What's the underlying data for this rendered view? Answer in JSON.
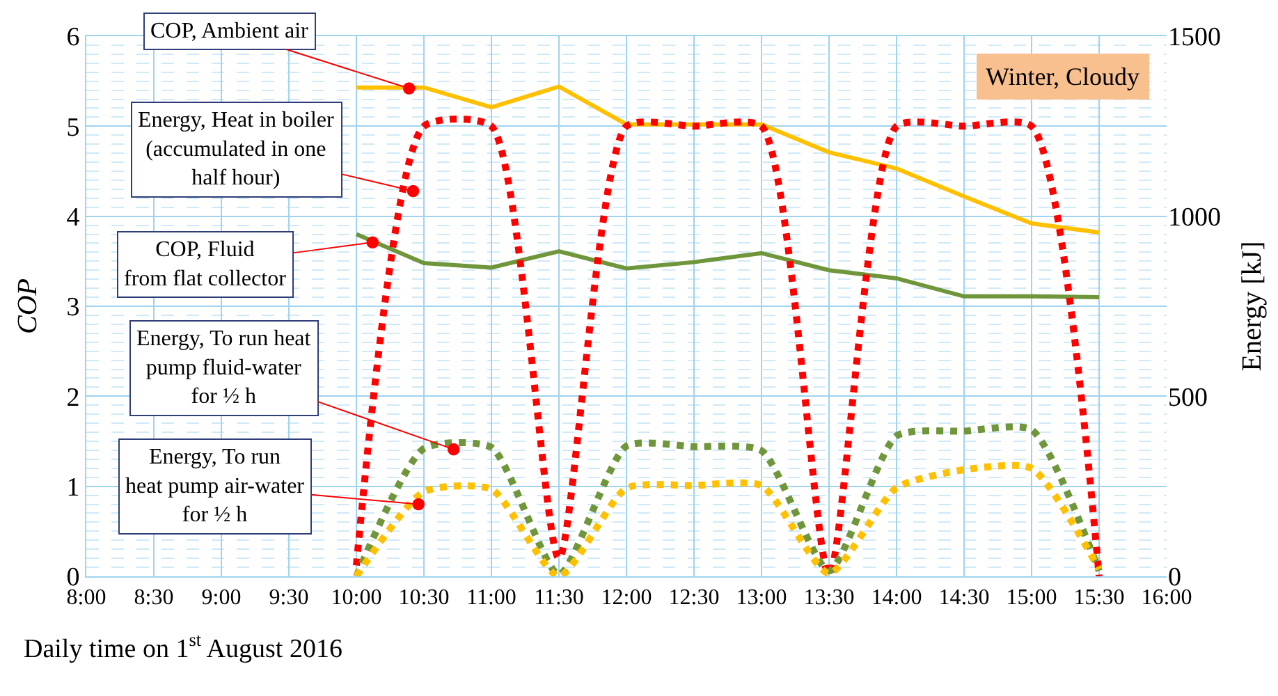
{
  "chart_data": {
    "type": "line",
    "xlabel": "Daily time on 1$^{st}$ August 2016",
    "ylabel": "COP",
    "y2label": "Energy [kJ]",
    "x": [
      10,
      10.5,
      11,
      11.5,
      12,
      12.5,
      13,
      13.5,
      14,
      14.5,
      15,
      15.5
    ],
    "series": [
      {
        "color": "#ffc000",
        "line_style": "solid",
        "values": [
          5.43,
          5.43,
          5.21,
          5.44,
          5.02,
          5.02,
          5.02,
          4.71,
          4.53,
          4.22,
          3.92,
          3.82
        ]
      },
      {
        "color": "#70963c",
        "line_style": "solid",
        "values": [
          3.8,
          3.48,
          3.43,
          3.61,
          3.42,
          3.49,
          3.59,
          3.4,
          3.31,
          3.11,
          3.11,
          3.1
        ]
      },
      {
        "color": "#ff0000",
        "line_style": "dotted",
        "axis": "y2",
        "values": [
          30,
          1250,
          1250,
          50,
          1250,
          1250,
          1250,
          5,
          1250,
          1250,
          1250,
          0
        ]
      },
      {
        "color": "#70963c",
        "line_style": "dotted",
        "axis": "y2",
        "values": [
          0,
          355,
          358,
          5,
          362,
          360,
          349,
          15,
          390,
          403,
          407,
          15
        ]
      },
      {
        "color": "#ffc000",
        "line_style": "dotted",
        "axis": "y2",
        "values": [
          0,
          235,
          242,
          0,
          245,
          252,
          252,
          8,
          246,
          296,
          300,
          20
        ]
      }
    ],
    "xlim": [
      8,
      16
    ],
    "xticks": [
      {
        "value": 8,
        "label": "8:00"
      },
      {
        "value": 8.5,
        "label": "8:30"
      },
      {
        "value": 9,
        "label": "9:00"
      },
      {
        "value": 9.5,
        "label": "9:30"
      },
      {
        "value": 10,
        "label": "10:00"
      },
      {
        "value": 10.5,
        "label": "10:30"
      },
      {
        "value": 11,
        "label": "11:00"
      },
      {
        "value": 11.5,
        "label": "11:30"
      },
      {
        "value": 12,
        "label": "12:00"
      },
      {
        "value": 12.5,
        "label": "12:30"
      },
      {
        "value": 13,
        "label": "13:00"
      },
      {
        "value": 13.5,
        "label": "13:30"
      },
      {
        "value": 14,
        "label": "14:00"
      },
      {
        "value": 14.5,
        "label": "14:30"
      },
      {
        "value": 15,
        "label": "15:00"
      },
      {
        "value": 15.5,
        "label": "15:30"
      },
      {
        "value": 16,
        "label": "16:00"
      }
    ],
    "ylim": [
      0,
      6
    ],
    "yticks": [
      0,
      1,
      2,
      3,
      4,
      5,
      6
    ],
    "y2lim": [
      0,
      1500
    ],
    "y2ticks": [
      0,
      500,
      1000,
      1500
    ],
    "grid": true,
    "marker": "none",
    "annotations": [
      {
        "text": "COP, Ambient air",
        "x": 10.39,
        "y": 5.42
      },
      {
        "text": "Energy, Heat in boiler\n(accumulated in one\nhalf hour)",
        "x": 10.42,
        "y": 4.28
      },
      {
        "text": "COP, Fluid\nfrom flat collector",
        "x": 10.12,
        "y": 3.71
      },
      {
        "text": "Energy, To run heat\npump fluid-water\nfor ½ h",
        "x": 10.72,
        "y": 1.41
      },
      {
        "text": "Energy, To run\nheat pump air-water\nfor ½ h",
        "x": 10.46,
        "y": 0.8
      },
      "Winter, Cloudy"
    ]
  }
}
